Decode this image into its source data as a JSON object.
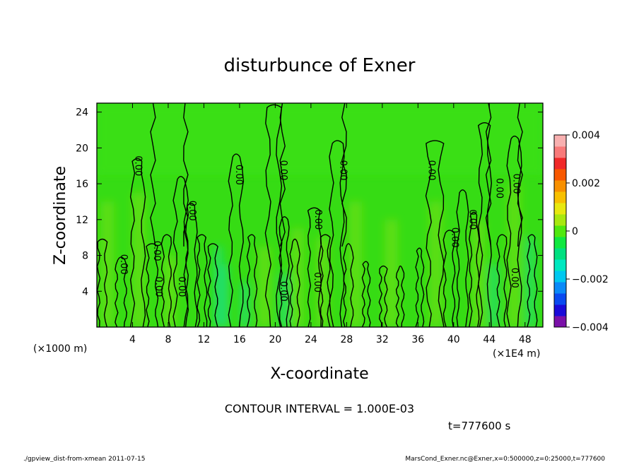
{
  "chart_data": {
    "type": "heatmap",
    "title": "disturbunce of Exner",
    "xlabel": "X-coordinate",
    "ylabel": "Z-coordinate",
    "x_unit_left": "(×1000 m)",
    "x_unit_right": "(×1E4 m)",
    "xlim": [
      0,
      50
    ],
    "ylim": [
      0,
      25
    ],
    "x_ticks": [
      4,
      8,
      12,
      16,
      20,
      24,
      28,
      32,
      36,
      40,
      44,
      48
    ],
    "y_ticks": [
      4,
      8,
      12,
      16,
      20,
      24
    ],
    "colorbar": {
      "min": -0.004,
      "max": 0.004,
      "tick_values": [
        0.004,
        0.002,
        0,
        -0.002,
        -0.004
      ],
      "tick_labels": [
        "0.004",
        "0.002",
        "0",
        "−0.002",
        "−0.004"
      ],
      "colors": [
        "#7a10a8",
        "#1a0ad8",
        "#0a4af0",
        "#0a8af8",
        "#00c8f0",
        "#00e8c0",
        "#00e080",
        "#10e840",
        "#50e810",
        "#a8e810",
        "#e8e810",
        "#f8c000",
        "#f89000",
        "#f85800",
        "#f02828",
        "#f87a7a",
        "#f8b0b0"
      ]
    },
    "contour_label": "0.00",
    "contour_label_positions": [
      [
        4.3,
        18
      ],
      [
        10.4,
        13
      ],
      [
        15.6,
        17
      ],
      [
        20.6,
        17.5
      ],
      [
        24.5,
        12
      ],
      [
        27.3,
        17.5
      ],
      [
        37.2,
        17.5
      ],
      [
        39.8,
        10
      ],
      [
        41.8,
        12
      ],
      [
        44.8,
        15.5
      ],
      [
        46.7,
        16
      ],
      [
        2.7,
        7
      ],
      [
        6.4,
        8.5
      ],
      [
        6.6,
        4.5
      ],
      [
        9.2,
        4.5
      ],
      [
        20.6,
        4
      ],
      [
        24.4,
        5
      ],
      [
        46.5,
        5.5
      ]
    ],
    "annotations": {
      "contour_interval": "CONTOUR INTERVAL = 1.000E-03",
      "time": "t=777600 s",
      "footer_left": "./gpview_dist-from-xmean   2011-07-15",
      "footer_right": "MarsCond_Exner.nc@Exner,x=0:500000,z=0:25000,t=777600"
    }
  }
}
